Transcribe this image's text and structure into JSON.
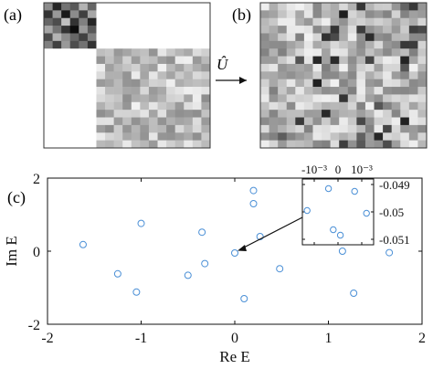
{
  "labels": {
    "a": "(a)",
    "b": "(b)",
    "c": "(c)",
    "operator": "Û"
  },
  "matrix_a": {
    "block1_n": 3,
    "block2_n": 10,
    "block1_gray": [
      [
        0.55,
        0.15,
        0.45,
        0.35,
        0.7,
        0.4
      ],
      [
        0.2,
        0.6,
        0.1,
        0.55,
        0.25,
        0.65
      ],
      [
        0.4,
        0.3,
        0.75,
        0.2,
        0.5,
        0.15
      ],
      [
        0.65,
        0.45,
        0.2,
        0.05,
        0.6,
        0.35
      ],
      [
        0.3,
        0.7,
        0.55,
        0.4,
        0.25,
        0.5
      ],
      [
        0.5,
        0.25,
        0.6,
        0.3,
        0.45,
        0.2
      ]
    ]
  },
  "colors": {
    "marker": "#4a8fd6",
    "axis": "#111111",
    "arrow": "#111111"
  },
  "chart_data": {
    "type": "scatter",
    "xlabel": "Re E",
    "ylabel": "Im E",
    "xlim": [
      -2,
      2
    ],
    "ylim": [
      -2,
      2
    ],
    "xticks": [
      "-2",
      "-1",
      "0",
      "1",
      "2"
    ],
    "yticks": [
      "2",
      "0",
      "-2"
    ],
    "points": [
      {
        "x": -1.62,
        "y": 0.18
      },
      {
        "x": -1.25,
        "y": -0.62
      },
      {
        "x": -1.05,
        "y": -1.12
      },
      {
        "x": -1.0,
        "y": 0.76
      },
      {
        "x": -0.5,
        "y": -0.66
      },
      {
        "x": -0.35,
        "y": 0.52
      },
      {
        "x": -0.32,
        "y": -0.34
      },
      {
        "x": 0.0,
        "y": -0.05
      },
      {
        "x": 0.1,
        "y": -1.3
      },
      {
        "x": 0.2,
        "y": 1.66
      },
      {
        "x": 0.2,
        "y": 1.3
      },
      {
        "x": 0.27,
        "y": 0.4
      },
      {
        "x": 0.48,
        "y": -0.48
      },
      {
        "x": 1.05,
        "y": 0.3
      },
      {
        "x": 1.15,
        "y": 0.0
      },
      {
        "x": 1.27,
        "y": -1.15
      },
      {
        "x": 1.65,
        "y": -0.04
      }
    ],
    "inset": {
      "xticks": [
        "-10⁻³",
        "0",
        "10⁻³"
      ],
      "yticks": [
        "-0.049",
        "-0.05",
        "-0.051"
      ],
      "xlim": [
        -0.0015,
        0.0015
      ],
      "ylim": [
        -0.0512,
        -0.0488
      ],
      "points": [
        {
          "x": -0.0004,
          "y": -0.04915
        },
        {
          "x": 0.0007,
          "y": -0.04925
        },
        {
          "x": -0.0013,
          "y": -0.04995
        },
        {
          "x": 0.0012,
          "y": -0.05005
        },
        {
          "x": -0.0002,
          "y": -0.05065
        },
        {
          "x": 0.0001,
          "y": -0.05085
        }
      ]
    }
  }
}
